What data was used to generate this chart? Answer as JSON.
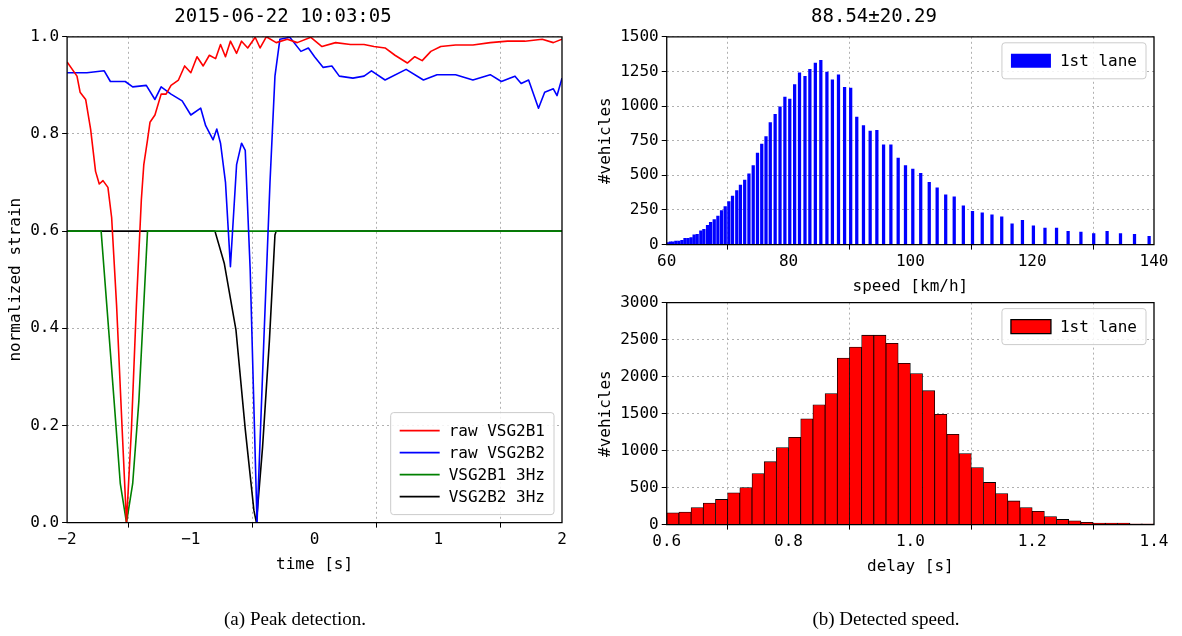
{
  "chart_data": [
    {
      "type": "line",
      "title": "2015-06-22 10:03:05",
      "xlabel": "time [s]",
      "ylabel": "normalized strain",
      "xlim": [
        -2,
        2
      ],
      "ylim": [
        0,
        1
      ],
      "xticks": [
        {
          "value": -2,
          "label": "−2"
        },
        {
          "value": -1,
          "label": "−1"
        },
        0,
        1,
        2
      ],
      "yticks": [
        {
          "value": 0,
          "label": "0.0"
        },
        0.2,
        0.4,
        0.6,
        0.8,
        {
          "value": 1,
          "label": "1.0"
        }
      ],
      "grid": true,
      "legend": "bottom right",
      "marker": "none",
      "line_style": "solid",
      "annotations": [
        "(a) Peak detection."
      ],
      "series": [
        {
          "name": "raw VSG2B1",
          "color": "#ff0000",
          "x": [
            -2,
            -1.92,
            -1.895,
            -1.85,
            -1.81,
            -1.77,
            -1.74,
            -1.71,
            -1.67,
            -1.64,
            -1.6,
            -1.555,
            -1.52,
            -1.48,
            -1.44,
            -1.4,
            -1.38,
            -1.35,
            -1.33,
            -1.29,
            -1.24,
            -1.2,
            -1.16,
            -1.1,
            -1.05,
            -1,
            -0.95,
            -0.9,
            -0.85,
            -0.8,
            -0.76,
            -0.72,
            -0.68,
            -0.63,
            -0.59,
            -0.54,
            -0.48,
            -0.44,
            -0.39,
            -0.31,
            -0.22,
            -0.14,
            -0.03,
            0.06,
            0.17,
            0.29,
            0.4,
            0.48,
            0.57,
            0.65,
            0.75,
            0.81,
            0.87,
            0.94,
            1.02,
            1.14,
            1.28,
            1.42,
            1.56,
            1.7,
            1.84,
            1.93,
            2
          ],
          "values": [
            0.948,
            0.919,
            0.886,
            0.871,
            0.81,
            0.723,
            0.697,
            0.704,
            0.69,
            0.628,
            0.447,
            0.192,
            0,
            0.192,
            0.447,
            0.664,
            0.737,
            0.788,
            0.824,
            0.839,
            0.882,
            0.882,
            0.9,
            0.911,
            0.94,
            0.926,
            0.959,
            0.94,
            0.962,
            0.955,
            0.984,
            0.959,
            0.991,
            0.966,
            0.991,
            0.977,
            0.999,
            0.977,
            1,
            0.988,
            0.995,
            0.988,
            0.999,
            0.98,
            0.988,
            0.984,
            0.984,
            0.98,
            0.977,
            0.962,
            0.946,
            0.959,
            0.951,
            0.97,
            0.98,
            0.983,
            0.983,
            0.988,
            0.991,
            0.991,
            0.995,
            0.988,
            0.995
          ]
        },
        {
          "name": "raw VSG2B2",
          "color": "#0000ff",
          "x": [
            -2,
            -1.84,
            -1.7,
            -1.65,
            -1.53,
            -1.47,
            -1.36,
            -1.29,
            -1.24,
            -1.16,
            -1.07,
            -1,
            -0.92,
            -0.88,
            -0.82,
            -0.79,
            -0.76,
            -0.72,
            -0.68,
            -0.63,
            -0.59,
            -0.56,
            -0.52,
            -0.465,
            -0.41,
            -0.36,
            -0.32,
            -0.28,
            -0.2,
            -0.11,
            -0.05,
            0,
            0.07,
            0.14,
            0.2,
            0.31,
            0.4,
            0.46,
            0.57,
            0.74,
            0.88,
            0.99,
            1.14,
            1.28,
            1.42,
            1.51,
            1.62,
            1.67,
            1.73,
            1.81,
            1.86,
            1.93,
            1.96,
            2
          ],
          "values": [
            0.926,
            0.926,
            0.93,
            0.908,
            0.908,
            0.897,
            0.9,
            0.871,
            0.897,
            0.882,
            0.868,
            0.839,
            0.853,
            0.817,
            0.788,
            0.81,
            0.781,
            0.701,
            0.527,
            0.737,
            0.781,
            0.766,
            0.519,
            0,
            0.374,
            0.701,
            0.919,
            0.995,
            0.999,
            0.97,
            0.977,
            0.959,
            0.937,
            0.94,
            0.919,
            0.915,
            0.919,
            0.93,
            0.911,
            0.933,
            0.911,
            0.922,
            0.922,
            0.911,
            0.922,
            0.908,
            0.919,
            0.904,
            0.911,
            0.853,
            0.886,
            0.893,
            0.879,
            0.915
          ]
        },
        {
          "name": "VSG2B1 3Hz",
          "color": "#008000",
          "x": [
            -2,
            -1.725,
            -1.68,
            -1.62,
            -1.57,
            -1.52,
            -1.47,
            -1.42,
            -1.38,
            -1.35,
            2
          ],
          "values": [
            0.6,
            0.6,
            0.45,
            0.25,
            0.08,
            0,
            0.08,
            0.25,
            0.45,
            0.6,
            0.6
          ]
        },
        {
          "name": "VSG2B2 3Hz",
          "color": "#000000",
          "x": [
            -2,
            -0.805,
            -0.73,
            -0.635,
            -0.56,
            -0.49,
            -0.47,
            -0.42,
            -0.365,
            -0.32,
            -0.31,
            2
          ],
          "values": [
            0.6,
            0.6,
            0.534,
            0.396,
            0.192,
            0.025,
            0,
            0.156,
            0.374,
            0.592,
            0.6,
            0.6
          ]
        }
      ]
    },
    {
      "type": "bar",
      "title": "88.54±20.29",
      "xlabel": "speed [km/h]",
      "ylabel": "#vehicles",
      "xlim": [
        60,
        140
      ],
      "ylim": [
        0,
        1500
      ],
      "xticks": [
        60,
        80,
        100,
        120,
        140
      ],
      "yticks": [
        0,
        250,
        500,
        750,
        1000,
        1250,
        1500
      ],
      "grid": true,
      "legend": "top right",
      "x": [
        60.1,
        60.6,
        61.0,
        61.5,
        62.0,
        62.5,
        63.0,
        63.5,
        64.0,
        64.5,
        65.0,
        65.6,
        66.1,
        66.7,
        67.2,
        67.8,
        68.4,
        69.0,
        69.6,
        70.2,
        70.8,
        71.5,
        72.1,
        72.8,
        73.5,
        74.2,
        74.9,
        75.6,
        76.3,
        77.0,
        77.8,
        78.6,
        79.4,
        80.2,
        81.0,
        81.8,
        82.7,
        83.5,
        84.4,
        85.3,
        86.3,
        87.2,
        88.2,
        89.2,
        90.2,
        91.2,
        92.3,
        93.4,
        94.5,
        95.6,
        96.8,
        98.0,
        99.2,
        100.4,
        101.7,
        103.1,
        104.4,
        105.8,
        107.2,
        108.7,
        110.2,
        111.8,
        113.4,
        115.0,
        116.7,
        118.4,
        120.2,
        122.1,
        124.0,
        125.9,
        128.0,
        130.1,
        132.3,
        134.5,
        136.8,
        139.2
      ],
      "series": [
        {
          "name": "1st lane",
          "color": "#0000ff",
          "values": [
            15,
            20,
            20,
            25,
            25,
            30,
            45,
            45,
            50,
            70,
            75,
            100,
            110,
            140,
            160,
            180,
            205,
            245,
            275,
            310,
            350,
            390,
            430,
            465,
            510,
            570,
            660,
            725,
            780,
            880,
            940,
            995,
            1065,
            1050,
            1155,
            1240,
            1215,
            1265,
            1310,
            1330,
            1245,
            1190,
            1225,
            1135,
            1130,
            920,
            860,
            820,
            825,
            720,
            720,
            625,
            570,
            545,
            515,
            450,
            410,
            360,
            345,
            280,
            240,
            230,
            215,
            200,
            150,
            175,
            135,
            120,
            120,
            95,
            90,
            80,
            95,
            80,
            75,
            60
          ]
        }
      ]
    },
    {
      "type": "histogram",
      "xlabel": "delay [s]",
      "ylabel": "#vehicles",
      "xlim": [
        0.6,
        1.4
      ],
      "ylim": [
        0,
        3000
      ],
      "xticks": [
        0.6,
        0.8,
        {
          "value": 1,
          "label": "1.0"
        },
        1.2,
        1.4
      ],
      "yticks": [
        0,
        500,
        1000,
        1500,
        2000,
        2500,
        3000
      ],
      "grid": true,
      "legend": "top right",
      "annotations": [
        "(b) Detected speed."
      ],
      "bins": [
        0.6,
        0.62,
        0.64,
        0.66,
        0.68,
        0.7,
        0.72,
        0.74,
        0.76,
        0.78,
        0.8,
        0.82,
        0.84,
        0.86,
        0.88,
        0.9,
        0.92,
        0.94,
        0.96,
        0.98,
        1.0,
        1.02,
        1.04,
        1.06,
        1.08,
        1.1,
        1.12,
        1.14,
        1.16,
        1.18,
        1.2,
        1.22,
        1.24,
        1.26,
        1.28,
        1.3,
        1.32,
        1.34,
        1.36,
        1.38,
        1.4
      ],
      "series": [
        {
          "name": "1st lane",
          "color": "#ff0000",
          "values": [
            160,
            170,
            230,
            290,
            340,
            430,
            500,
            690,
            850,
            1040,
            1180,
            1430,
            1620,
            1770,
            2250,
            2400,
            2560,
            2560,
            2450,
            2180,
            2040,
            1810,
            1490,
            1220,
            960,
            770,
            570,
            420,
            320,
            230,
            180,
            110,
            70,
            50,
            30,
            20,
            20,
            20,
            10,
            10
          ]
        }
      ]
    }
  ]
}
